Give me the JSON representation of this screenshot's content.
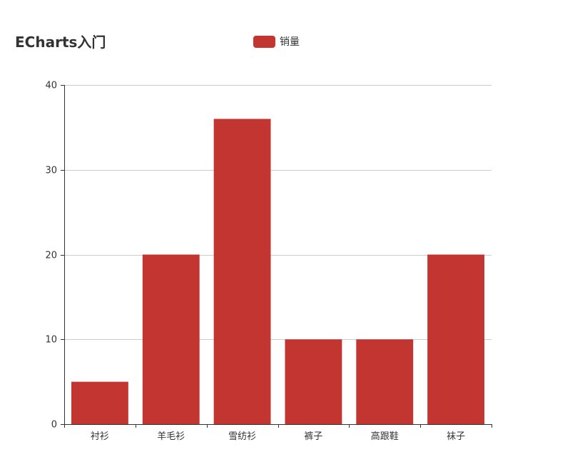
{
  "chart_data": {
    "type": "bar",
    "title": "ECharts入门",
    "legend": [
      "销量"
    ],
    "legend_position": "top-center",
    "categories": [
      "衬衫",
      "羊毛衫",
      "雪纺衫",
      "裤子",
      "高跟鞋",
      "袜子"
    ],
    "series": [
      {
        "name": "销量",
        "values": [
          5,
          20,
          36,
          10,
          10,
          20
        ]
      }
    ],
    "ylim": [
      0,
      40
    ],
    "yticks": [
      0,
      10,
      20,
      30,
      40
    ],
    "grid": true,
    "colors": {
      "bar": "#c23531",
      "axis": "#333333",
      "grid": "#cccccc",
      "text": "#333333"
    }
  }
}
